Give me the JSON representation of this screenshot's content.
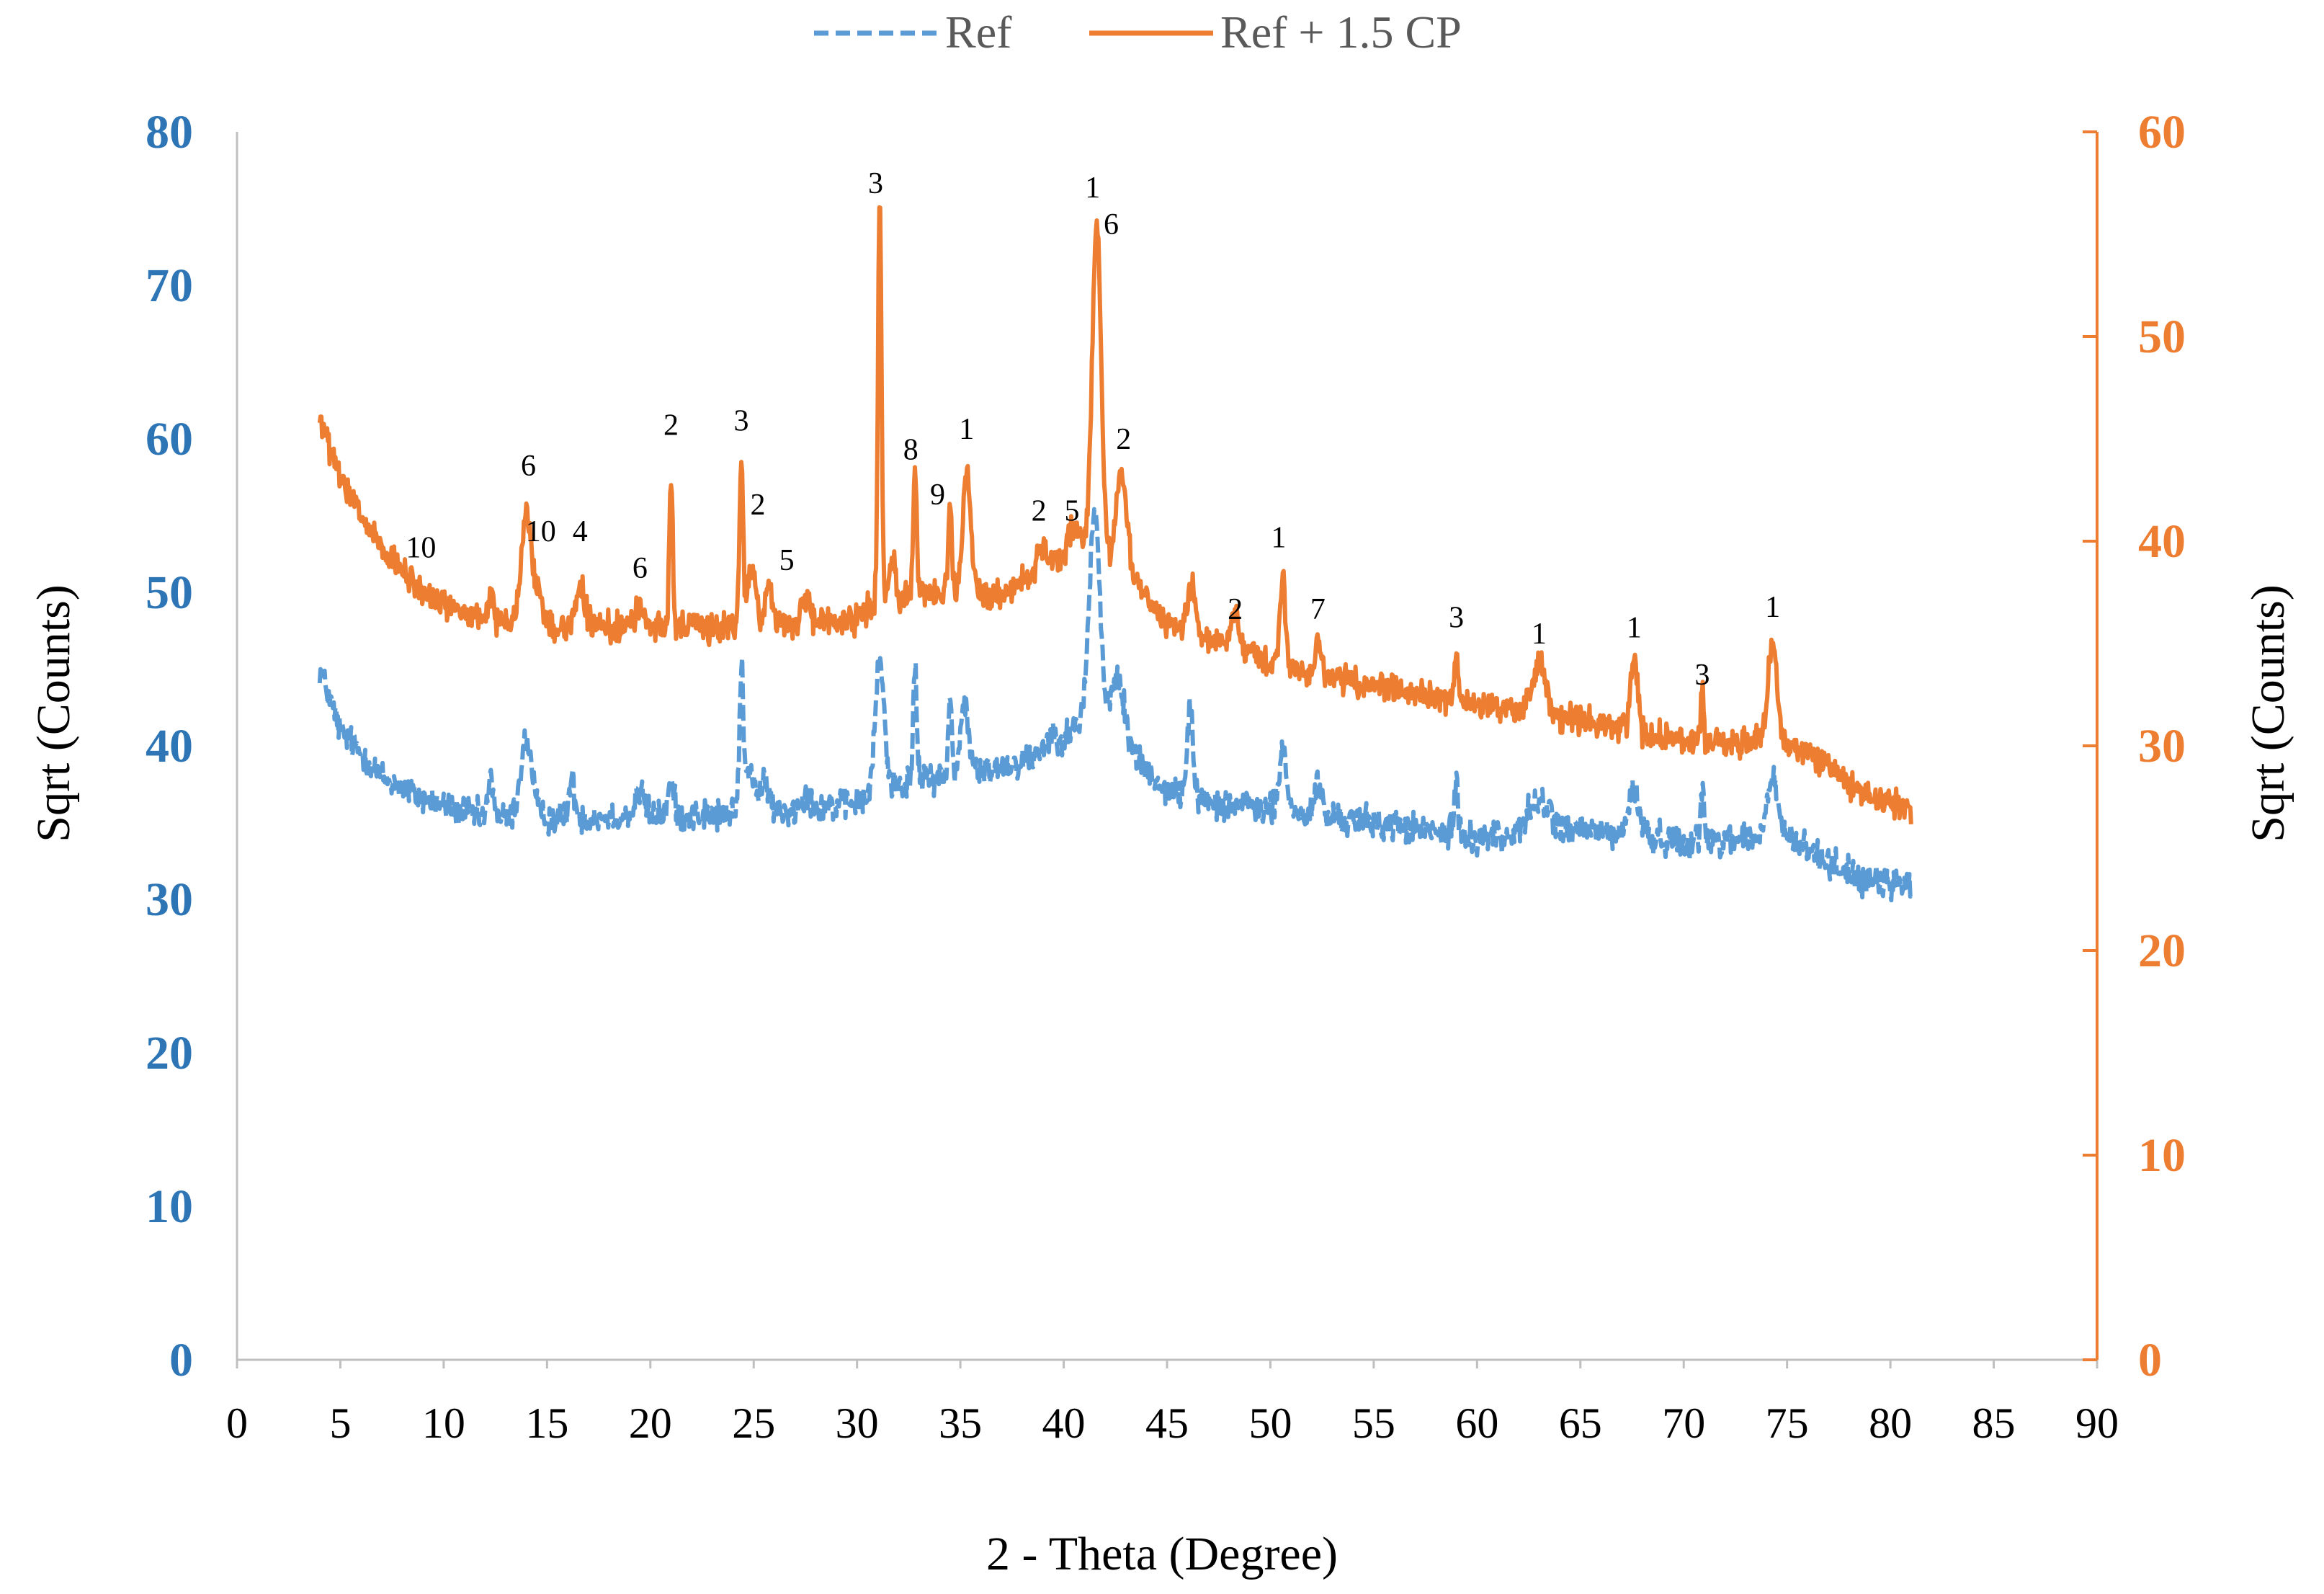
{
  "chart_data": {
    "type": "line",
    "title": "",
    "xlabel": "2 - Theta (Degree)",
    "ylabel_left": "Sqrt (Counts)",
    "ylabel_right": "Sqrt (Counts)",
    "xlim": [
      0,
      90
    ],
    "ylim_left": [
      0,
      80
    ],
    "ylim_right": [
      0,
      60
    ],
    "x_ticks": [
      "0",
      "5",
      "10",
      "15",
      "20",
      "25",
      "30",
      "35",
      "40",
      "45",
      "50",
      "55",
      "60",
      "65",
      "70",
      "75",
      "80",
      "85",
      "90"
    ],
    "y_ticks_left": [
      "0",
      "10",
      "20",
      "30",
      "40",
      "50",
      "60",
      "70",
      "80"
    ],
    "y_ticks_right": [
      "0",
      "10",
      "20",
      "30",
      "40",
      "50",
      "60"
    ],
    "grid": false,
    "legend_position": "top-center",
    "colors": {
      "ref": "#5b9bd5",
      "cp": "#ed7d31",
      "left_axis_text": "#2e75b6",
      "right_axis_text": "#ed7d31",
      "label_text": "#000000",
      "axis_line": "#bfbfbf"
    },
    "series": [
      {
        "name": "Ref",
        "axis": "left",
        "style": "dashed",
        "color": "#5b9bd5",
        "baseline": [
          [
            4,
            45
          ],
          [
            5,
            41
          ],
          [
            7,
            38
          ],
          [
            9,
            36.5
          ],
          [
            12,
            35.3
          ],
          [
            15,
            35.3
          ],
          [
            20,
            35.5
          ],
          [
            25,
            35.5
          ],
          [
            28,
            36
          ],
          [
            30,
            36.3
          ],
          [
            31,
            37
          ],
          [
            33,
            38
          ],
          [
            35,
            38
          ],
          [
            38,
            39
          ],
          [
            40,
            40
          ],
          [
            41,
            42
          ],
          [
            43,
            40
          ],
          [
            45,
            37
          ],
          [
            50,
            35.8
          ],
          [
            55,
            35
          ],
          [
            60,
            34
          ],
          [
            65,
            34.5
          ],
          [
            70,
            33.8
          ],
          [
            73,
            34
          ],
          [
            75,
            34
          ],
          [
            77,
            32.5
          ],
          [
            79,
            31
          ],
          [
            81,
            31
          ]
        ],
        "peaks": [
          [
            12.3,
            2.5,
            0.2
          ],
          [
            14,
            5,
            0.4
          ],
          [
            16.2,
            2.3,
            0.2
          ],
          [
            19.5,
            1.5,
            0.3
          ],
          [
            21,
            2,
            0.2
          ],
          [
            24.4,
            9,
            0.12
          ],
          [
            24.8,
            3,
            0.4
          ],
          [
            25.6,
            2,
            0.25
          ],
          [
            27.5,
            1,
            0.3
          ],
          [
            31.1,
            8.5,
            0.3
          ],
          [
            32.8,
            7,
            0.12
          ],
          [
            34.5,
            5,
            0.12
          ],
          [
            35.2,
            4.5,
            0.3
          ],
          [
            39.5,
            1,
            0.6
          ],
          [
            41.5,
            14,
            0.35
          ],
          [
            42.6,
            4,
            0.45
          ],
          [
            46.1,
            6,
            0.18
          ],
          [
            50.6,
            4,
            0.25
          ],
          [
            52.3,
            2,
            0.25
          ],
          [
            59,
            3.8,
            0.12
          ],
          [
            63,
            2,
            0.8
          ],
          [
            67.6,
            3,
            0.35
          ],
          [
            70.9,
            3.5,
            0.1
          ],
          [
            74.3,
            4,
            0.35
          ]
        ],
        "noise": 1.0
      },
      {
        "name": "Ref + 1.5 CP",
        "axis": "right",
        "style": "solid",
        "color": "#ed7d31",
        "baseline": [
          [
            4,
            46
          ],
          [
            5,
            43
          ],
          [
            7,
            39.5
          ],
          [
            9,
            37.5
          ],
          [
            12,
            36
          ],
          [
            15,
            35.8
          ],
          [
            20,
            35.8
          ],
          [
            25,
            35.8
          ],
          [
            28,
            36
          ],
          [
            30,
            36.3
          ],
          [
            31,
            37
          ],
          [
            33,
            37.5
          ],
          [
            35,
            37.5
          ],
          [
            37,
            37.5
          ],
          [
            39,
            38.5
          ],
          [
            41,
            40
          ],
          [
            43,
            38.5
          ],
          [
            45,
            36
          ],
          [
            50,
            34
          ],
          [
            55,
            33
          ],
          [
            60,
            32
          ],
          [
            65,
            31.2
          ],
          [
            70,
            30.2
          ],
          [
            73,
            30.2
          ],
          [
            75,
            30.2
          ],
          [
            77,
            29
          ],
          [
            79,
            27.5
          ],
          [
            81,
            27
          ]
        ],
        "peaks": [
          [
            12.3,
            1.5,
            0.2
          ],
          [
            14,
            5.5,
            0.35
          ],
          [
            14.6,
            1.5,
            0.3
          ],
          [
            16.6,
            2,
            0.3
          ],
          [
            19.5,
            1,
            0.3
          ],
          [
            21,
            7.5,
            0.12
          ],
          [
            24.4,
            8,
            0.12
          ],
          [
            24.9,
            3,
            0.3
          ],
          [
            25.7,
            2,
            0.25
          ],
          [
            27.5,
            1,
            0.3
          ],
          [
            31.1,
            20,
            0.12
          ],
          [
            31.7,
            2,
            0.2
          ],
          [
            32.8,
            6,
            0.12
          ],
          [
            34.5,
            4,
            0.12
          ],
          [
            35.3,
            6,
            0.25
          ],
          [
            38.9,
            1.5,
            0.3
          ],
          [
            40.4,
            1,
            0.3
          ],
          [
            41.6,
            16,
            0.3
          ],
          [
            42.8,
            5,
            0.35
          ],
          [
            46.2,
            2.5,
            0.25
          ],
          [
            48.3,
            1.5,
            0.3
          ],
          [
            50.6,
            4.5,
            0.2
          ],
          [
            52.3,
            1.5,
            0.2
          ],
          [
            59,
            2.3,
            0.12
          ],
          [
            63,
            2.5,
            0.5
          ],
          [
            67.6,
            3.5,
            0.25
          ],
          [
            70.9,
            2.5,
            0.1
          ],
          [
            74.3,
            5,
            0.3
          ]
        ],
        "noise": 0.7
      }
    ],
    "annotations": [
      {
        "text": "10",
        "x": 8.9,
        "y_right": 39.2
      },
      {
        "text": "6",
        "x": 14.1,
        "y_right": 43.2
      },
      {
        "text": "10",
        "x": 14.7,
        "y_right": 40.0
      },
      {
        "text": "4",
        "x": 16.6,
        "y_right": 40.0
      },
      {
        "text": "6",
        "x": 19.5,
        "y_right": 38.2
      },
      {
        "text": "2",
        "x": 21.0,
        "y_right": 45.2
      },
      {
        "text": "3",
        "x": 24.4,
        "y_right": 45.4
      },
      {
        "text": "2",
        "x": 25.2,
        "y_right": 41.3
      },
      {
        "text": "5",
        "x": 26.6,
        "y_right": 38.6
      },
      {
        "text": "3",
        "x": 30.9,
        "y_right": 57.0
      },
      {
        "text": "8",
        "x": 32.6,
        "y_right": 44.0
      },
      {
        "text": "9",
        "x": 33.9,
        "y_right": 41.8
      },
      {
        "text": "1",
        "x": 35.3,
        "y_right": 45.0
      },
      {
        "text": "2",
        "x": 38.8,
        "y_right": 41.0
      },
      {
        "text": "5",
        "x": 40.4,
        "y_right": 41.0
      },
      {
        "text": "1",
        "x": 41.4,
        "y_right": 56.8
      },
      {
        "text": "6",
        "x": 42.3,
        "y_right": 55.0
      },
      {
        "text": "2",
        "x": 42.9,
        "y_right": 44.5
      },
      {
        "text": "2",
        "x": 48.3,
        "y_right": 36.2
      },
      {
        "text": "1",
        "x": 50.4,
        "y_right": 39.7
      },
      {
        "text": "7",
        "x": 52.3,
        "y_right": 36.2
      },
      {
        "text": "3",
        "x": 59.0,
        "y_right": 35.8
      },
      {
        "text": "1",
        "x": 63.0,
        "y_right": 35.0
      },
      {
        "text": "1",
        "x": 67.6,
        "y_right": 35.3
      },
      {
        "text": "3",
        "x": 70.9,
        "y_right": 33.0
      },
      {
        "text": "1",
        "x": 74.3,
        "y_right": 36.3
      }
    ]
  }
}
